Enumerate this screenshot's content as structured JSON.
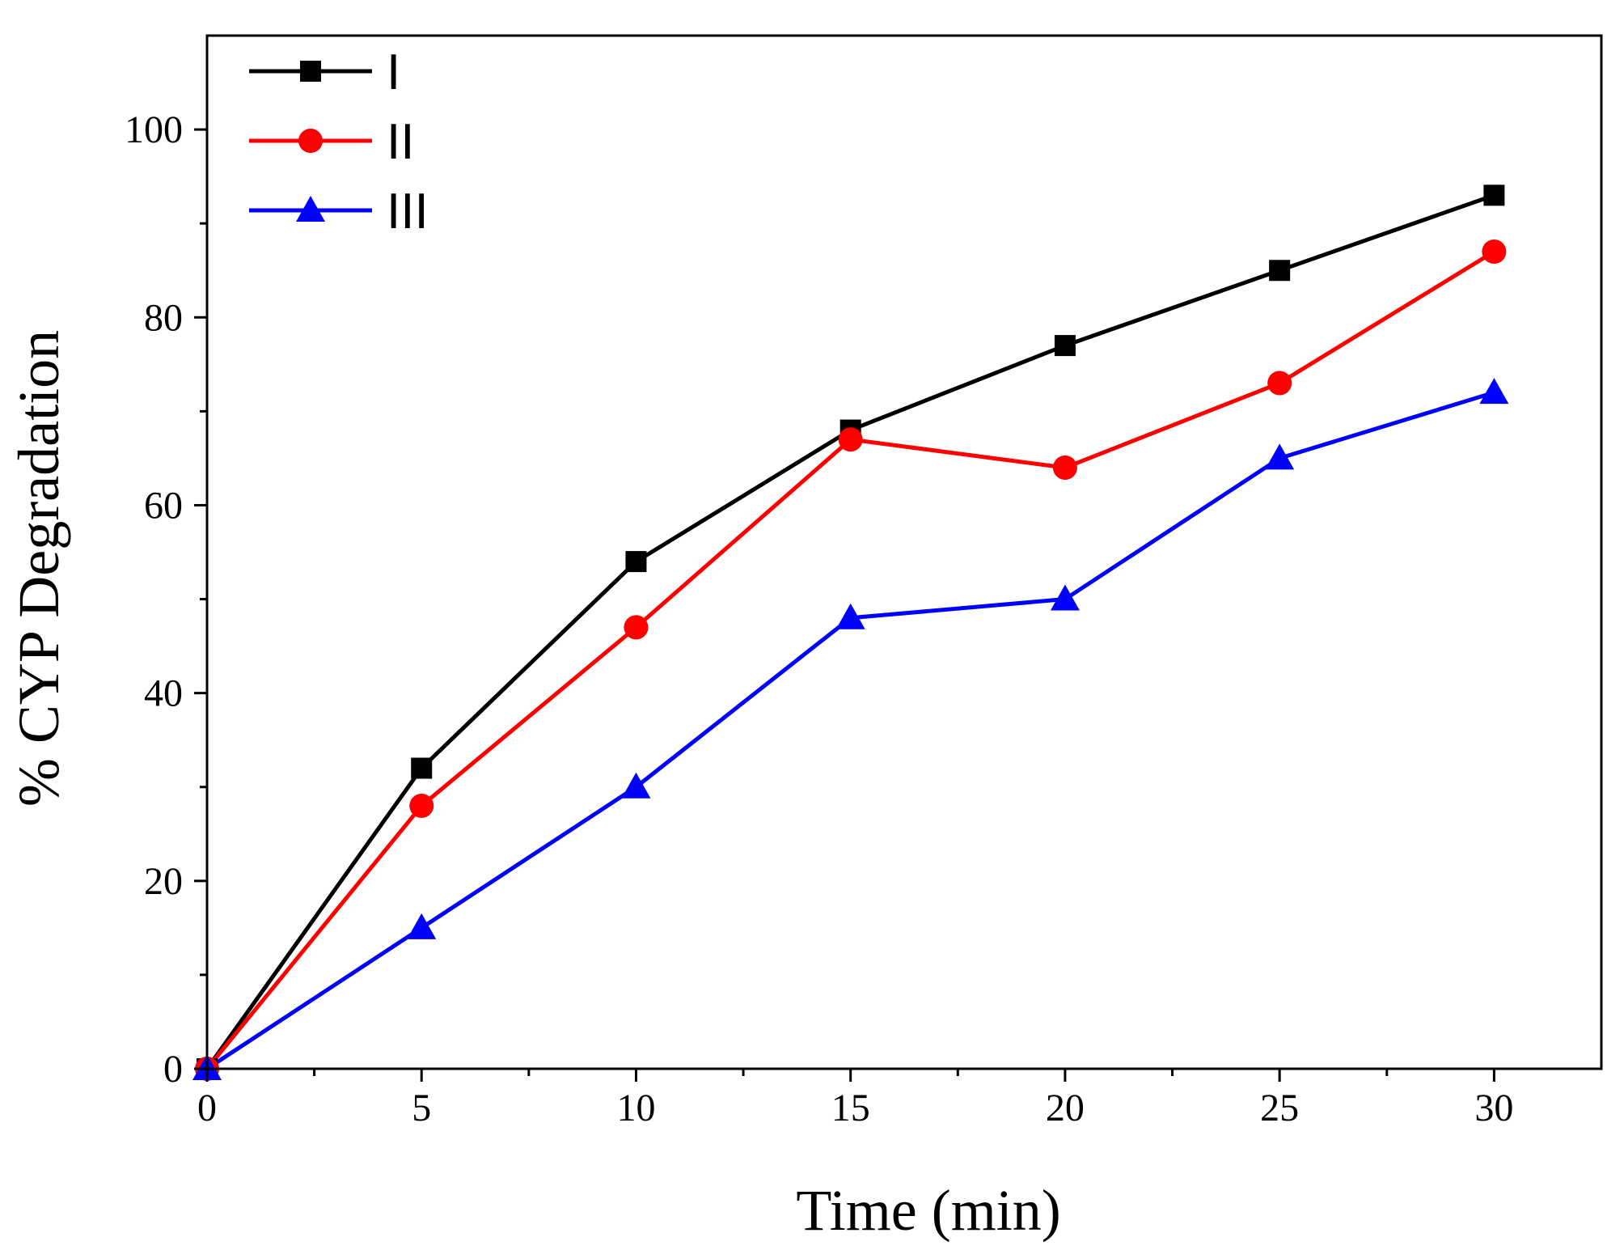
{
  "chart_data": {
    "type": "line",
    "title": "",
    "xlabel": "Time (min)",
    "ylabel": "% CYP Degradation",
    "xlim": [
      0,
      32.5
    ],
    "ylim": [
      0,
      110
    ],
    "x_ticks": [
      0,
      5,
      10,
      15,
      20,
      25,
      30
    ],
    "x_tick_labels": [
      "0",
      "5",
      "10",
      "15",
      "20",
      "25",
      "30"
    ],
    "y_ticks": [
      0,
      20,
      40,
      60,
      80,
      100
    ],
    "y_tick_labels": [
      "0",
      "20",
      "40",
      "60",
      "80",
      "100"
    ],
    "legend_position": "top-left",
    "x": [
      0,
      5,
      10,
      15,
      20,
      25,
      30
    ],
    "series": [
      {
        "name": "I",
        "marker": "square",
        "color": "#000000",
        "values": [
          0,
          32,
          54,
          68,
          77,
          85,
          93
        ]
      },
      {
        "name": "II",
        "marker": "circle",
        "color": "#ff0000",
        "values": [
          0,
          28,
          47,
          67,
          64,
          73,
          87
        ]
      },
      {
        "name": "III",
        "marker": "triangle",
        "color": "#0000ff",
        "values": [
          0,
          15,
          30,
          48,
          50,
          65,
          72
        ]
      }
    ]
  }
}
